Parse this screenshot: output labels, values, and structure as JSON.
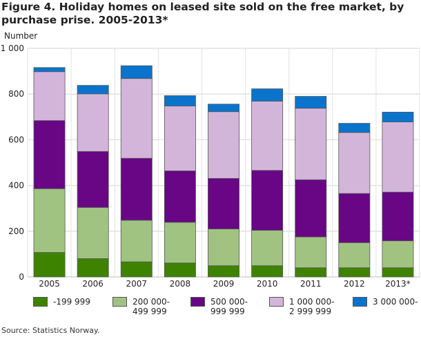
{
  "chart_data": {
    "type": "bar",
    "stacked": true,
    "title": "Figure 4. Holiday homes on leased site sold on the free market, by purchase prise. 2005-2013*",
    "ylabel": "Number",
    "ylim": [
      0,
      1000
    ],
    "yticks": [
      0,
      200,
      400,
      600,
      800,
      1000
    ],
    "ytick_labels": [
      "0",
      "200",
      "400",
      "600",
      "800",
      "1 000"
    ],
    "grid": true,
    "legend_placement": "bottom",
    "categories": [
      "2005",
      "2006",
      "2007",
      "2008",
      "2009",
      "2010",
      "2011",
      "2012",
      "2013*"
    ],
    "series": [
      {
        "name": "-199 999",
        "color": "#3e8300",
        "values": [
          107,
          80,
          66,
          61,
          49,
          49,
          40,
          40,
          40
        ]
      },
      {
        "name": "200 000-\n499 999",
        "color": "#a0c382",
        "values": [
          279,
          224,
          182,
          178,
          161,
          155,
          135,
          110,
          118
        ]
      },
      {
        "name": "500 000-\n999 999",
        "color": "#680686",
        "values": [
          298,
          245,
          271,
          225,
          221,
          262,
          250,
          215,
          213
        ]
      },
      {
        "name": "1 000 000-\n2 999 999",
        "color": "#d3b5da",
        "values": [
          214,
          252,
          349,
          284,
          292,
          303,
          313,
          267,
          307
        ]
      },
      {
        "name": "3 000 000-",
        "color": "#0a74cd",
        "values": [
          18,
          37,
          56,
          45,
          33,
          54,
          52,
          40,
          43
        ]
      }
    ]
  },
  "source": "Source: Statistics Norway."
}
